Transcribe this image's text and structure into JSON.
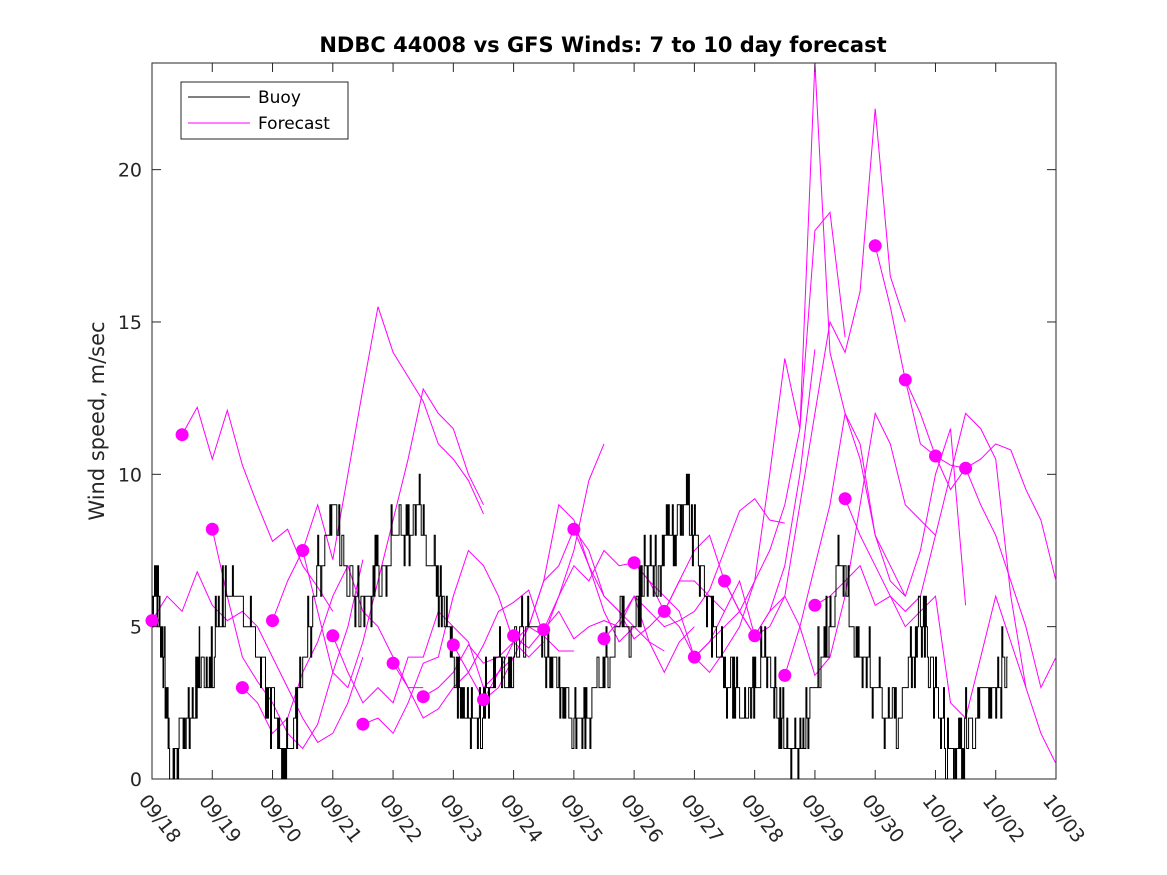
{
  "chart_data": {
    "type": "line",
    "title": "NDBC 44008 vs GFS Winds: 7 to 10 day forecast",
    "xlabel": "",
    "ylabel": "Wind speed, m/sec",
    "xlim": [
      0,
      15
    ],
    "ylim": [
      0,
      23.5
    ],
    "xtick_values": [
      0,
      1,
      2,
      3,
      4,
      5,
      6,
      7,
      8,
      9,
      10,
      11,
      12,
      13,
      14,
      15
    ],
    "xtick_labels": [
      "09/18",
      "09/19",
      "09/20",
      "09/21",
      "09/22",
      "09/23",
      "09/24",
      "09/25",
      "09/26",
      "09/27",
      "09/28",
      "09/29",
      "09/30",
      "10/01",
      "10/02",
      "10/03"
    ],
    "ytick_values": [
      0,
      5,
      10,
      15,
      20
    ],
    "ytick_labels": [
      "0",
      "5",
      "10",
      "15",
      "20"
    ],
    "legend": {
      "position": "top-left",
      "entries": [
        {
          "label": "Buoy",
          "color": "#000000"
        },
        {
          "label": "Forecast",
          "color": "#ff00ff"
        }
      ]
    },
    "colors": {
      "buoy": "#000000",
      "forecast": "#ff00ff",
      "axes": "#262626"
    },
    "buoy": {
      "name": "Buoy",
      "x": [
        0,
        0.1,
        0.2,
        0.3,
        0.4,
        0.5,
        0.7,
        0.8,
        1.0,
        1.2,
        1.4,
        1.6,
        1.8,
        2.0,
        2.2,
        2.4,
        2.6,
        2.8,
        3.0,
        3.2,
        3.4,
        3.6,
        3.8,
        4.0,
        4.2,
        4.4,
        4.6,
        4.8,
        5.0,
        5.2,
        5.4,
        5.6,
        5.8,
        6.0,
        6.2,
        6.4,
        6.6,
        6.8,
        7.0,
        7.2,
        7.4,
        7.6,
        7.8,
        8.0,
        8.2,
        8.4,
        8.6,
        8.8,
        9.0,
        9.2,
        9.4,
        9.6,
        9.8,
        10.0,
        10.2,
        10.4,
        10.6,
        10.8,
        11.0,
        11.2,
        11.4,
        11.6,
        11.8,
        12.0,
        12.2,
        12.4,
        12.6,
        12.8,
        13.0,
        13.2,
        13.4,
        13.6,
        13.8,
        14.0,
        14.2
      ],
      "y": [
        6,
        6,
        4,
        0,
        1,
        2,
        2,
        4,
        4,
        6,
        6,
        5,
        4,
        2,
        1,
        2,
        5,
        7,
        9,
        7,
        6,
        6,
        7,
        8,
        8,
        9,
        7,
        6,
        4,
        2,
        2,
        3,
        4,
        4,
        5,
        5,
        4,
        3,
        2,
        2,
        3,
        4,
        5,
        5,
        7,
        7,
        8,
        9,
        8,
        6,
        4,
        3,
        2,
        3,
        4,
        2,
        1,
        1,
        3,
        5,
        7,
        5,
        4,
        3,
        2,
        2,
        4,
        5,
        3,
        1,
        1,
        2,
        3,
        3,
        4
      ]
    },
    "forecast_markers": {
      "name": "Forecast",
      "x": [
        0.0,
        0.5,
        1.0,
        1.5,
        2.0,
        2.5,
        3.0,
        3.5,
        4.0,
        4.5,
        5.0,
        5.5,
        6.0,
        6.5,
        7.0,
        7.5,
        8.0,
        8.5,
        9.0,
        9.5,
        10.0,
        10.5,
        11.0,
        11.5,
        12.0,
        12.5,
        13.0,
        13.5,
        14.0,
        14.5
      ],
      "y": [
        5.2,
        11.3,
        8.2,
        3.0,
        5.2,
        7.5,
        4.7,
        1.8,
        3.8,
        2.7,
        4.4,
        2.6,
        4.7,
        4.9,
        8.2,
        4.6,
        7.1,
        5.5,
        4.0,
        6.5,
        4.7,
        3.4,
        5.7,
        9.2,
        17.5,
        13.1,
        10.6,
        10.2,
        null,
        null
      ]
    },
    "forecast_series": [
      {
        "name": "Forecast",
        "x": [
          0.5,
          0.75,
          1.0,
          1.25,
          1.5,
          1.75,
          2.0,
          2.25,
          2.5,
          2.75,
          3.0
        ],
        "y": [
          11.3,
          12.2,
          10.5,
          12.1,
          10.3,
          9.0,
          7.8,
          8.2,
          7.0,
          6.3,
          5.5
        ]
      },
      {
        "name": "Forecast",
        "x": [
          1.0,
          1.25,
          1.5,
          1.75,
          2.0,
          2.25,
          2.5,
          2.75,
          3.0,
          3.25,
          3.5
        ],
        "y": [
          8.2,
          6.0,
          4.0,
          3.2,
          2.5,
          1.5,
          1.0,
          1.8,
          3.5,
          5.0,
          7.2
        ]
      },
      {
        "name": "Forecast",
        "x": [
          0,
          0.25,
          0.5,
          0.75,
          1.0,
          1.25,
          1.5,
          1.75,
          2.0,
          2.25,
          2.5,
          2.75,
          3.0,
          3.25,
          3.5
        ],
        "y": [
          5.2,
          6.0,
          5.5,
          6.8,
          5.7,
          5.2,
          5.5,
          5.0,
          4.0,
          3.0,
          2.0,
          1.2,
          1.5,
          2.5,
          4.0
        ]
      },
      {
        "name": "Forecast",
        "x": [
          1.5,
          1.75,
          2.0,
          2.25,
          2.5,
          2.75,
          3.0,
          3.25,
          3.5,
          3.75,
          4.0,
          4.25,
          4.5
        ],
        "y": [
          3.0,
          2.5,
          1.5,
          2.0,
          3.5,
          4.5,
          6.0,
          7.0,
          5.5,
          5.0,
          4.0,
          3.0,
          3.0
        ]
      },
      {
        "name": "Forecast",
        "x": [
          2.0,
          2.25,
          2.5,
          2.75,
          3.0,
          3.25,
          3.5,
          3.75,
          4.0,
          4.25,
          4.5,
          4.75,
          5.0,
          5.25,
          5.5
        ],
        "y": [
          5.2,
          6.5,
          7.5,
          9.0,
          7.2,
          10.0,
          12.8,
          15.5,
          14.0,
          13.2,
          12.4,
          11.0,
          10.5,
          9.8,
          8.7
        ]
      },
      {
        "name": "Forecast",
        "x": [
          2.5,
          2.75,
          3.0,
          3.25,
          3.5,
          3.75,
          4.0,
          4.25,
          4.5,
          4.75,
          5.0,
          5.25,
          5.5
        ],
        "y": [
          7.5,
          5.5,
          3.5,
          3.0,
          4.5,
          6.5,
          8.5,
          10.5,
          12.8,
          12.0,
          11.5,
          10.0,
          9.0
        ]
      },
      {
        "name": "Forecast",
        "x": [
          3.0,
          3.25,
          3.5,
          3.75,
          4.0,
          4.25,
          4.5,
          4.75,
          5.0,
          5.25,
          5.5,
          5.75,
          6.0
        ],
        "y": [
          4.7,
          3.5,
          2.5,
          3.0,
          2.5,
          4.0,
          4.0,
          5.5,
          5.0,
          4.5,
          3.0,
          3.5,
          4.5
        ]
      },
      {
        "name": "Forecast",
        "x": [
          3.5,
          3.75,
          4.0,
          4.25,
          4.5,
          4.75,
          5.0,
          5.25,
          5.5,
          5.75,
          6.0,
          6.25,
          6.5
        ],
        "y": [
          1.8,
          2.0,
          1.5,
          2.5,
          3.8,
          4.0,
          6.0,
          7.5,
          7.0,
          6.0,
          4.5,
          4.0,
          4.5
        ]
      },
      {
        "name": "Forecast",
        "x": [
          4.0,
          4.25,
          4.5,
          4.75,
          5.0,
          5.25,
          5.5,
          5.75,
          6.0,
          6.25,
          6.5,
          6.75,
          7.0
        ],
        "y": [
          3.8,
          3.0,
          2.0,
          2.3,
          3.0,
          3.5,
          4.4,
          5.5,
          5.8,
          6.2,
          4.7,
          4.2,
          4.2
        ]
      },
      {
        "name": "Forecast",
        "x": [
          4.5,
          4.75,
          5.0,
          5.25,
          5.5,
          5.75,
          6.0,
          6.25,
          6.5,
          6.75,
          7.0,
          7.25,
          7.5
        ],
        "y": [
          2.7,
          3.0,
          3.5,
          4.4,
          3.8,
          4.0,
          4.5,
          5.0,
          4.7,
          6.0,
          7.5,
          9.8,
          11.0
        ]
      },
      {
        "name": "Forecast",
        "x": [
          5.0,
          5.25,
          5.5,
          5.75,
          6.0,
          6.25,
          6.5,
          6.75,
          7.0,
          7.25,
          7.5,
          7.75,
          8.0
        ],
        "y": [
          4.4,
          3.5,
          2.6,
          3.0,
          4.0,
          5.0,
          6.5,
          9.0,
          8.5,
          7.0,
          5.5,
          4.5,
          5.0
        ]
      },
      {
        "name": "Forecast",
        "x": [
          5.5,
          5.75,
          6.0,
          6.25,
          6.5,
          6.75,
          7.0,
          7.25,
          7.5,
          7.75,
          8.0,
          8.25,
          8.5
        ],
        "y": [
          2.6,
          3.5,
          4.0,
          5.0,
          6.5,
          7.0,
          8.2,
          7.5,
          6.0,
          5.5,
          5.0,
          4.5,
          4.2
        ]
      },
      {
        "name": "Forecast",
        "x": [
          6.0,
          6.25,
          6.5,
          6.75,
          7.0,
          7.25,
          7.5,
          7.75,
          8.0,
          8.25,
          8.5,
          8.75,
          9.0
        ],
        "y": [
          4.7,
          4.3,
          4.9,
          5.5,
          4.6,
          5.0,
          5.2,
          5.0,
          6.0,
          4.5,
          3.5,
          4.5,
          5.0
        ]
      },
      {
        "name": "Forecast",
        "x": [
          6.5,
          6.75,
          7.0,
          7.25,
          7.5,
          7.75,
          8.0,
          8.25,
          8.5,
          8.75,
          9.0,
          9.25,
          9.5
        ],
        "y": [
          4.9,
          6.0,
          7.0,
          6.5,
          7.5,
          7.0,
          7.1,
          6.5,
          5.5,
          6.5,
          6.5,
          6.0,
          5.5
        ]
      },
      {
        "name": "Forecast",
        "x": [
          7.0,
          7.25,
          7.5,
          7.75,
          8.0,
          8.25,
          8.5,
          8.75,
          9.0,
          9.25,
          9.5,
          9.75,
          10.0
        ],
        "y": [
          8.2,
          7.0,
          6.0,
          5.5,
          4.6,
          5.0,
          5.5,
          6.5,
          7.5,
          8.0,
          6.5,
          5.5,
          4.7
        ]
      },
      {
        "name": "Forecast",
        "x": [
          7.5,
          7.75,
          8.0,
          8.25,
          8.5,
          8.75,
          9.0,
          9.25,
          9.5,
          9.75,
          10.0,
          10.25,
          10.5
        ],
        "y": [
          4.6,
          5.2,
          6.0,
          5.5,
          5.0,
          5.2,
          5.5,
          6.2,
          7.5,
          8.8,
          9.2,
          8.5,
          8.4
        ]
      },
      {
        "name": "Forecast",
        "x": [
          8.0,
          8.25,
          8.5,
          8.75,
          9.0,
          9.25,
          9.5,
          9.75,
          10.0,
          10.25,
          10.5,
          10.75,
          11.0
        ],
        "y": [
          7.1,
          6.5,
          6.0,
          5.5,
          4.0,
          4.5,
          5.5,
          6.5,
          4.7,
          5.5,
          7.0,
          10.0,
          14.1
        ]
      },
      {
        "name": "Forecast",
        "x": [
          8.5,
          8.75,
          9.0,
          9.25,
          9.5,
          9.75,
          10.0,
          10.25,
          10.5,
          10.75,
          11.0,
          11.25,
          11.5
        ],
        "y": [
          5.5,
          5.0,
          4.0,
          3.5,
          4.2,
          5.0,
          6.5,
          10.0,
          13.8,
          11.5,
          18.0,
          18.6,
          14.5
        ]
      },
      {
        "name": "Forecast",
        "x": [
          9.0,
          9.25,
          9.5,
          9.75,
          10.0,
          10.25,
          10.5,
          10.75,
          11.0,
          11.25,
          11.5,
          11.75,
          12.0,
          12.25,
          12.5
        ],
        "y": [
          4.0,
          4.5,
          5.0,
          5.5,
          6.5,
          7.5,
          9.0,
          11.5,
          23.5,
          14.0,
          12.0,
          10.5,
          8.0,
          7.0,
          6.0
        ]
      },
      {
        "name": "Forecast",
        "x": [
          9.5,
          9.75,
          10.0,
          10.25,
          10.5,
          10.75,
          11.0,
          11.25,
          11.5,
          11.75,
          12.0,
          12.25,
          12.5
        ],
        "y": [
          6.5,
          5.5,
          4.7,
          5.0,
          6.0,
          9.0,
          12.0,
          15.0,
          14.0,
          16.0,
          22.0,
          16.5,
          15.0
        ]
      },
      {
        "name": "Forecast",
        "x": [
          10.0,
          10.25,
          10.5,
          10.75,
          11.0,
          11.25,
          11.5,
          11.75,
          12.0,
          12.25,
          12.5,
          12.75,
          13.0
        ],
        "y": [
          4.7,
          5.5,
          6.0,
          5.0,
          3.4,
          4.0,
          6.0,
          9.0,
          12.0,
          11.0,
          9.0,
          8.5,
          8.0
        ]
      },
      {
        "name": "Forecast",
        "x": [
          10.5,
          10.75,
          11.0,
          11.25,
          11.5,
          11.75,
          12.0,
          12.25,
          12.5,
          12.75,
          13.0,
          13.25,
          13.5
        ],
        "y": [
          3.4,
          5.0,
          7.0,
          9.0,
          12.0,
          11.0,
          8.0,
          6.5,
          6.0,
          7.5,
          10.0,
          11.5,
          5.7
        ]
      },
      {
        "name": "Forecast",
        "x": [
          11.0,
          11.25,
          11.5,
          11.75,
          12.0,
          12.25,
          12.5,
          12.75,
          13.0,
          13.25,
          13.5,
          13.75,
          14.0,
          14.25,
          14.5
        ],
        "y": [
          5.7,
          6.0,
          6.5,
          7.0,
          5.7,
          6.0,
          5.5,
          6.0,
          8.0,
          10.0,
          12.0,
          11.5,
          10.5,
          6.0,
          3.0
        ]
      },
      {
        "name": "Forecast",
        "x": [
          11.5,
          11.75,
          12.0,
          12.25,
          12.5,
          12.75,
          13.0,
          13.25,
          13.5,
          13.75,
          14.0,
          14.25,
          14.5,
          14.75,
          15.0
        ],
        "y": [
          9.2,
          8.0,
          7.0,
          6.0,
          5.0,
          5.5,
          6.0,
          2.5,
          2.0,
          4.0,
          6.0,
          4.5,
          3.0,
          1.5,
          0.5
        ]
      },
      {
        "name": "Forecast",
        "x": [
          12.0,
          12.25,
          12.5,
          12.75,
          13.0,
          13.25,
          13.5,
          13.75,
          14.0,
          14.25,
          14.5,
          14.75,
          15.0
        ],
        "y": [
          17.5,
          15.5,
          13.1,
          12.0,
          10.6,
          10.3,
          10.2,
          9.0,
          8.0,
          6.5,
          5.0,
          3.0,
          4.0
        ]
      },
      {
        "name": "Forecast",
        "x": [
          12.5,
          12.75,
          13.0,
          13.25,
          13.5,
          13.75,
          14.0,
          14.25,
          14.5,
          14.75,
          15.0
        ],
        "y": [
          13.1,
          11.0,
          10.6,
          9.5,
          10.2,
          10.5,
          11.0,
          10.8,
          9.5,
          8.5,
          6.5
        ]
      }
    ]
  }
}
